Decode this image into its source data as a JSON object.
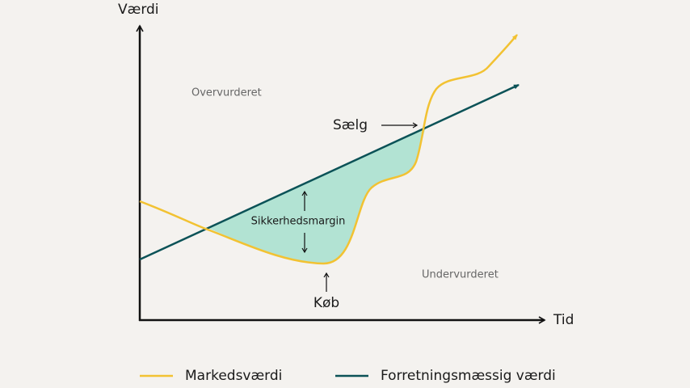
{
  "axes": {
    "y_label": "Værdi",
    "x_label": "Tid"
  },
  "regions": {
    "overvalued": "Overvurderet",
    "undervalued": "Undervurderet"
  },
  "annotations": {
    "sell": "Sælg",
    "buy": "Køb",
    "margin": "Sikkerhedsmargin"
  },
  "legend": [
    "Markedsværdi",
    "Forretningsmæssig værdi"
  ]
}
